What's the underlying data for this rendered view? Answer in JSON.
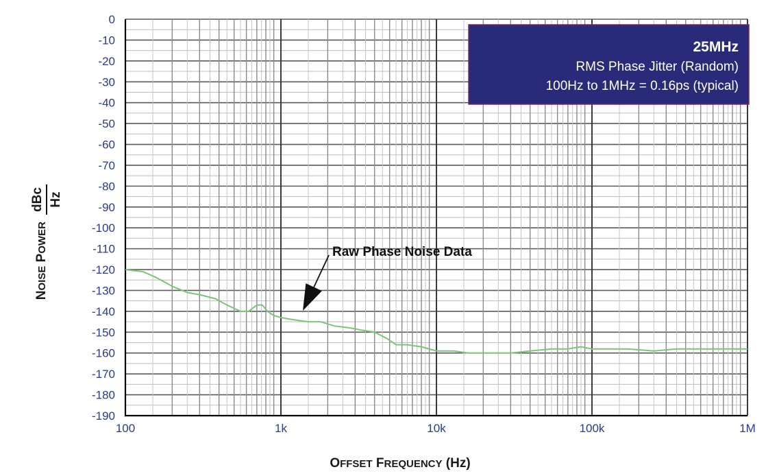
{
  "chart_data": {
    "type": "line",
    "xscale": "log",
    "xlim": [
      100,
      1000000
    ],
    "ylim": [
      -190,
      0
    ],
    "xlabel_main": "Offset Frequency",
    "xlabel_unit": "(Hz)",
    "ylabel_main": "Noise Power",
    "ylabel_unit_top": "dBc",
    "ylabel_unit_bottom": "Hz",
    "x_ticks": [
      {
        "value": 100,
        "label": "100"
      },
      {
        "value": 1000,
        "label": "1k"
      },
      {
        "value": 10000,
        "label": "10k"
      },
      {
        "value": 100000,
        "label": "100k"
      },
      {
        "value": 1000000,
        "label": "1M"
      }
    ],
    "y_ticks": [
      0,
      -10,
      -20,
      -30,
      -40,
      -50,
      -60,
      -70,
      -80,
      -90,
      -100,
      -110,
      -120,
      -130,
      -140,
      -150,
      -160,
      -170,
      -180,
      -190
    ],
    "grid": true,
    "series": [
      {
        "name": "Raw Phase Noise Data",
        "color": "#7cc47c",
        "points": [
          [
            100,
            -120
          ],
          [
            130,
            -121
          ],
          [
            160,
            -124
          ],
          [
            200,
            -128
          ],
          [
            250,
            -131
          ],
          [
            300,
            -132
          ],
          [
            380,
            -134
          ],
          [
            450,
            -137
          ],
          [
            550,
            -140
          ],
          [
            620,
            -140
          ],
          [
            700,
            -137
          ],
          [
            760,
            -137
          ],
          [
            820,
            -140
          ],
          [
            900,
            -142
          ],
          [
            1000,
            -143
          ],
          [
            1200,
            -144
          ],
          [
            1500,
            -145
          ],
          [
            1800,
            -145
          ],
          [
            2200,
            -147
          ],
          [
            2800,
            -148
          ],
          [
            3300,
            -149
          ],
          [
            4000,
            -150
          ],
          [
            4800,
            -153
          ],
          [
            5500,
            -156
          ],
          [
            6500,
            -156
          ],
          [
            8000,
            -157
          ],
          [
            10000,
            -159
          ],
          [
            13000,
            -159
          ],
          [
            16000,
            -160
          ],
          [
            20000,
            -160
          ],
          [
            30000,
            -160
          ],
          [
            40000,
            -159
          ],
          [
            55000,
            -158
          ],
          [
            70000,
            -158
          ],
          [
            85000,
            -157
          ],
          [
            100000,
            -158
          ],
          [
            130000,
            -158
          ],
          [
            170000,
            -158
          ],
          [
            250000,
            -159
          ],
          [
            350000,
            -158
          ],
          [
            500000,
            -158
          ],
          [
            700000,
            -158
          ],
          [
            1000000,
            -158
          ]
        ]
      }
    ],
    "annotations": [
      {
        "text": "Raw Phase Noise Data",
        "x": 1300,
        "y": -111,
        "arrow_to": [
          1000,
          -143
        ]
      }
    ],
    "info_box": {
      "title": "25MHz",
      "line1": "RMS Phase Jitter (Random)",
      "line2": "100Hz to 1MHz = 0.16ps (typical)",
      "background": "#2a2a7a",
      "border": "#7a2a5a"
    }
  }
}
